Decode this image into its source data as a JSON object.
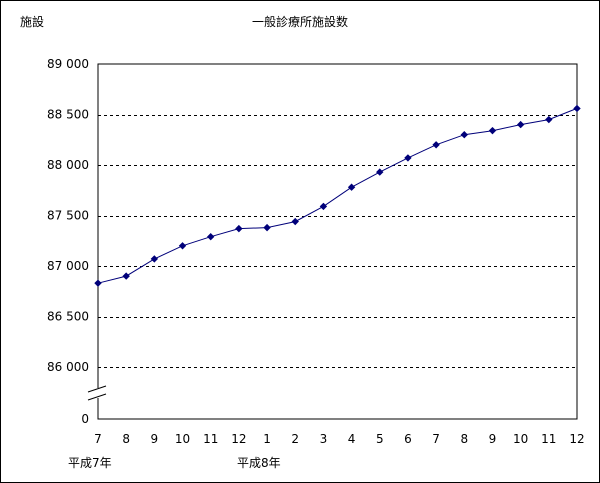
{
  "chart_data": {
    "type": "line",
    "title": "一般診療所施設数",
    "ylabel": "施設",
    "xlabel": "",
    "x_major": [
      {
        "label": "平成7年",
        "start_index": 0
      },
      {
        "label": "平成8年",
        "start_index": 6
      }
    ],
    "categories": [
      "7",
      "8",
      "9",
      "10",
      "11",
      "12",
      "1",
      "2",
      "3",
      "4",
      "5",
      "6",
      "7",
      "8",
      "9",
      "10",
      "11",
      "12"
    ],
    "series": [
      {
        "values": [
          86830,
          86900,
          87070,
          87200,
          87290,
          87370,
          87380,
          87440,
          87590,
          87780,
          87930,
          88070,
          88200,
          88300,
          88340,
          88400,
          88450,
          88560
        ],
        "color": "#00007a"
      }
    ],
    "ylim": [
      86000,
      89000
    ],
    "yticks": [
      86000,
      86500,
      87000,
      87500,
      88000,
      88500,
      89000
    ],
    "ytick_labels": [
      "86 000",
      "86 500",
      "87 000",
      "87 500",
      "88 000",
      "88 500",
      "89 000"
    ],
    "y_axis_break": true,
    "y_zero_label": "0",
    "grid": "horizontal-dashed",
    "legend": "none"
  }
}
